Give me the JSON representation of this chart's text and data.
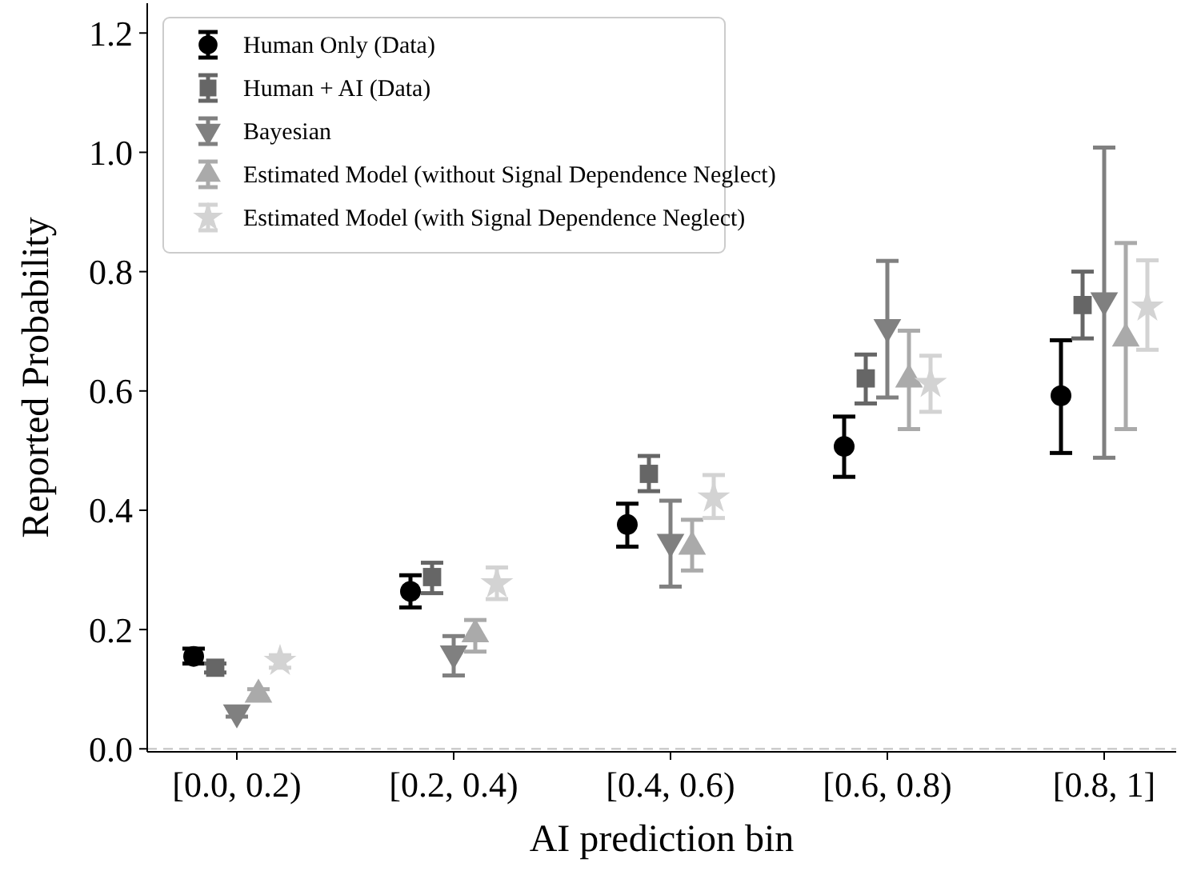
{
  "chart_data": {
    "type": "scatter",
    "xlabel": "AI prediction bin",
    "ylabel": "Reported Probability",
    "categories": [
      "[0.0, 0.2)",
      "[0.2, 0.4)",
      "[0.4, 0.6)",
      "[0.6, 0.8)",
      "[0.8, 1]"
    ],
    "ylim": [
      -0.005,
      1.25
    ],
    "yticks": [
      {
        "value": 0,
        "label": "0.0"
      },
      0.2,
      0.4,
      0.6,
      0.8,
      {
        "value": 1,
        "label": "1.0"
      },
      1.2
    ],
    "legend": "top left",
    "grid": false,
    "ref_lines": [
      {
        "axis": "y",
        "value": 0,
        "color": "#cccccc",
        "line_style": "dashed"
      }
    ],
    "series": [
      {
        "name": "Human Only (Data)",
        "color": "#000000",
        "marker": "circle",
        "values": [
          0.155,
          0.264,
          0.376,
          0.507,
          0.592
        ],
        "errors": [
          [
            0.143,
            0.168
          ],
          [
            0.237,
            0.291
          ],
          [
            0.339,
            0.411
          ],
          [
            0.456,
            0.557
          ],
          [
            0.496,
            0.685
          ]
        ]
      },
      {
        "name": "Human + AI (Data)",
        "color": "#666666",
        "marker": "square",
        "values": [
          0.136,
          0.288,
          0.461,
          0.621,
          0.744
        ],
        "errors": [
          [
            0.128,
            0.143
          ],
          [
            0.261,
            0.312
          ],
          [
            0.432,
            0.491
          ],
          [
            0.579,
            0.661
          ],
          [
            0.688,
            0.8
          ]
        ]
      },
      {
        "name": "Bayesian",
        "color": "#808080",
        "marker": "triangle-down",
        "values": [
          0.061,
          0.16,
          0.347,
          0.707,
          0.752
        ],
        "errors": [
          [
            0.054,
            0.069
          ],
          [
            0.123,
            0.189
          ],
          [
            0.272,
            0.416
          ],
          [
            0.589,
            0.818
          ],
          [
            0.488,
            1.008
          ]
        ]
      },
      {
        "name": "Estimated Model (without Signal Dependence Neglect)",
        "color": "#aaaaaa",
        "marker": "triangle",
        "values": [
          0.091,
          0.192,
          0.339,
          0.619,
          0.688
        ],
        "errors": [
          [
            0.083,
            0.1
          ],
          [
            0.163,
            0.216
          ],
          [
            0.299,
            0.384
          ],
          [
            0.536,
            0.701
          ],
          [
            0.536,
            0.848
          ]
        ]
      },
      {
        "name": "Estimated Model (with Signal Dependence Neglect)",
        "color": "#d3d3d3",
        "marker": "star",
        "values": [
          0.147,
          0.277,
          0.421,
          0.613,
          0.741
        ],
        "errors": [
          [
            0.136,
            0.157
          ],
          [
            0.251,
            0.304
          ],
          [
            0.387,
            0.459
          ],
          [
            0.565,
            0.659
          ],
          [
            0.669,
            0.819
          ]
        ]
      }
    ]
  }
}
